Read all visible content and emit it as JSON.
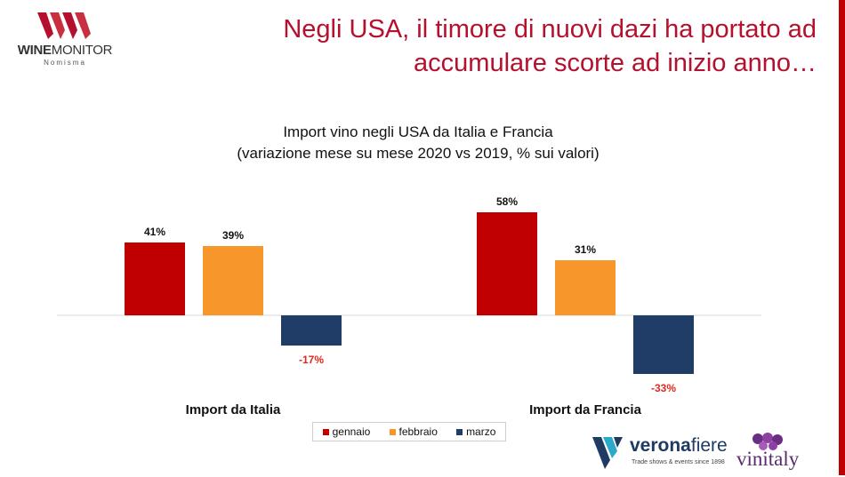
{
  "header": {
    "logo_text_bold": "WINE",
    "logo_text_rest": "MONITOR",
    "logo_sub": "Nomisma",
    "title_line1": "Negli USA, il timore di nuovi dazi ha portato ad",
    "title_line2": "accumulare scorte ad inizio anno…"
  },
  "colors": {
    "accent": "#b5102e",
    "stripe": "#c00000",
    "gennaio": "#c00000",
    "febbraio": "#f7962b",
    "marzo": "#1f3d66",
    "negative_label": "#e0281f"
  },
  "chart_data": {
    "type": "bar",
    "title_line1": "Import vino negli USA da Italia e Francia",
    "title_line2": "(variazione mese su mese 2020 vs 2019, % sui valori)",
    "categories": [
      "Import da Italia",
      "Import da Francia"
    ],
    "series": [
      {
        "name": "gennaio",
        "values": [
          41,
          58
        ],
        "labels": [
          "41%",
          "58%"
        ]
      },
      {
        "name": "febbraio",
        "values": [
          39,
          31
        ],
        "labels": [
          "39%",
          "31%"
        ]
      },
      {
        "name": "marzo",
        "values": [
          -17,
          -33
        ],
        "labels": [
          "-17%",
          "-33%"
        ]
      }
    ],
    "legend_position": "bottom",
    "grid": false,
    "ylim": [
      -40,
      65
    ]
  },
  "footer": {
    "vf_brand_a": "verona",
    "vf_brand_b": "fiere",
    "vf_tagline": "Trade shows & events since 1898",
    "vinitaly": "vinitaly"
  }
}
